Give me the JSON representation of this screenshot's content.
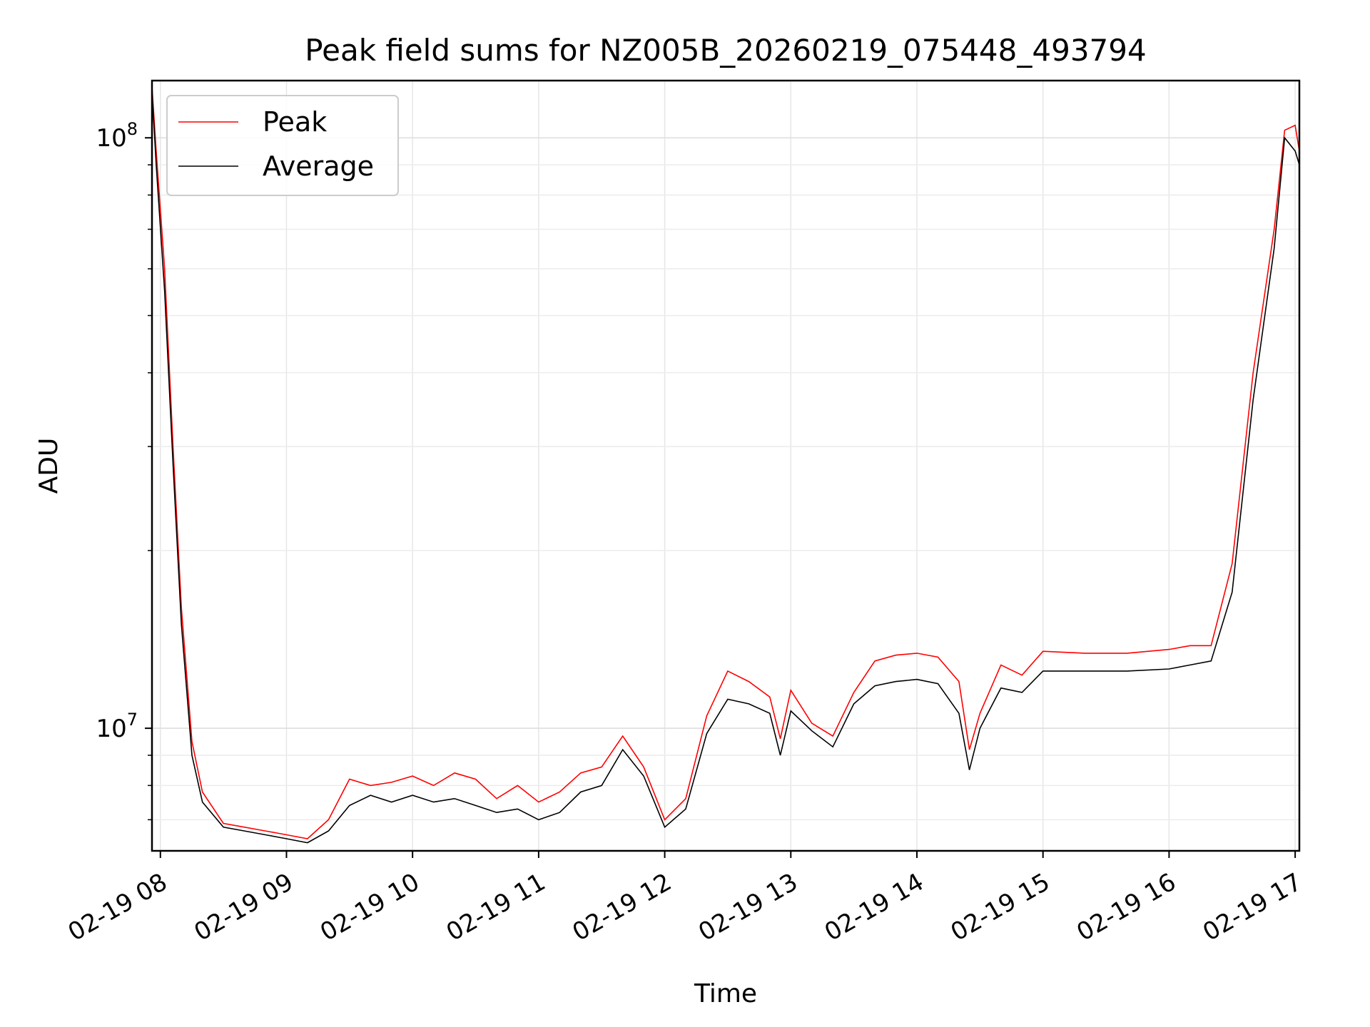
{
  "chart_data": {
    "type": "line",
    "title": "Peak field sums for NZ005B_20260219_075448_493794",
    "xlabel": "Time",
    "ylabel": "ADU",
    "y_scale": "log",
    "ylim": [
      6200000,
      125000000
    ],
    "xlim": [
      "2026-02-19 07:56",
      "2026-02-19 17:02"
    ],
    "grid": true,
    "legend": {
      "placement": "top-left",
      "entries": [
        "Peak",
        "Average"
      ]
    },
    "x_ticks": [
      {
        "time": "2026-02-19 08:00",
        "label": "02-19 08"
      },
      {
        "time": "2026-02-19 09:00",
        "label": "02-19 09"
      },
      {
        "time": "2026-02-19 10:00",
        "label": "02-19 10"
      },
      {
        "time": "2026-02-19 11:00",
        "label": "02-19 11"
      },
      {
        "time": "2026-02-19 12:00",
        "label": "02-19 12"
      },
      {
        "time": "2026-02-19 13:00",
        "label": "02-19 13"
      },
      {
        "time": "2026-02-19 14:00",
        "label": "02-19 14"
      },
      {
        "time": "2026-02-19 15:00",
        "label": "02-19 15"
      },
      {
        "time": "2026-02-19 16:00",
        "label": "02-19 16"
      },
      {
        "time": "2026-02-19 17:00",
        "label": "02-19 17"
      }
    ],
    "y_major_ticks": [
      {
        "value": 10000000,
        "base": "10",
        "exp": "7"
      },
      {
        "value": 100000000,
        "base": "10",
        "exp": "8"
      }
    ],
    "y_minor_ticks": [
      7000000,
      8000000,
      9000000,
      20000000,
      30000000,
      40000000,
      50000000,
      60000000,
      70000000,
      80000000,
      90000000
    ],
    "series": [
      {
        "name": "Peak",
        "color": "#ff0000",
        "x": [
          "2026-02-19 07:56",
          "2026-02-19 07:58",
          "2026-02-19 08:02",
          "2026-02-19 08:06",
          "2026-02-19 08:10",
          "2026-02-19 08:15",
          "2026-02-19 08:20",
          "2026-02-19 08:30",
          "2026-02-19 08:40",
          "2026-02-19 08:50",
          "2026-02-19 09:00",
          "2026-02-19 09:10",
          "2026-02-19 09:20",
          "2026-02-19 09:30",
          "2026-02-19 09:40",
          "2026-02-19 09:50",
          "2026-02-19 10:00",
          "2026-02-19 10:10",
          "2026-02-19 10:20",
          "2026-02-19 10:30",
          "2026-02-19 10:40",
          "2026-02-19 10:50",
          "2026-02-19 11:00",
          "2026-02-19 11:10",
          "2026-02-19 11:20",
          "2026-02-19 11:30",
          "2026-02-19 11:40",
          "2026-02-19 11:50",
          "2026-02-19 12:00",
          "2026-02-19 12:10",
          "2026-02-19 12:20",
          "2026-02-19 12:30",
          "2026-02-19 12:40",
          "2026-02-19 12:50",
          "2026-02-19 12:55",
          "2026-02-19 13:00",
          "2026-02-19 13:10",
          "2026-02-19 13:20",
          "2026-02-19 13:30",
          "2026-02-19 13:40",
          "2026-02-19 13:50",
          "2026-02-19 14:00",
          "2026-02-19 14:10",
          "2026-02-19 14:20",
          "2026-02-19 14:25",
          "2026-02-19 14:30",
          "2026-02-19 14:40",
          "2026-02-19 14:50",
          "2026-02-19 15:00",
          "2026-02-19 15:20",
          "2026-02-19 15:40",
          "2026-02-19 16:00",
          "2026-02-19 16:10",
          "2026-02-19 16:20",
          "2026-02-19 16:30",
          "2026-02-19 16:40",
          "2026-02-19 16:50",
          "2026-02-19 16:55",
          "2026-02-19 17:00",
          "2026-02-19 17:02"
        ],
        "y": [
          122000000,
          95000000,
          60000000,
          30000000,
          16000000,
          9500000,
          7800000,
          6900000,
          6800000,
          6700000,
          6600000,
          6500000,
          7000000,
          8200000,
          8000000,
          8100000,
          8300000,
          8000000,
          8400000,
          8200000,
          7600000,
          8000000,
          7500000,
          7800000,
          8400000,
          8600000,
          9700000,
          8600000,
          7000000,
          7600000,
          10500000,
          12500000,
          12000000,
          11300000,
          9600000,
          11600000,
          10200000,
          9700000,
          11500000,
          13000000,
          13300000,
          13400000,
          13200000,
          12000000,
          9200000,
          10600000,
          12800000,
          12300000,
          13500000,
          13400000,
          13400000,
          13600000,
          13800000,
          13800000,
          19000000,
          40000000,
          70000000,
          103000000,
          105000000,
          95000000
        ]
      },
      {
        "name": "Average",
        "color": "#000000",
        "x": [
          "2026-02-19 07:56",
          "2026-02-19 07:58",
          "2026-02-19 08:02",
          "2026-02-19 08:06",
          "2026-02-19 08:10",
          "2026-02-19 08:15",
          "2026-02-19 08:20",
          "2026-02-19 08:30",
          "2026-02-19 08:40",
          "2026-02-19 08:50",
          "2026-02-19 09:00",
          "2026-02-19 09:10",
          "2026-02-19 09:20",
          "2026-02-19 09:30",
          "2026-02-19 09:40",
          "2026-02-19 09:50",
          "2026-02-19 10:00",
          "2026-02-19 10:10",
          "2026-02-19 10:20",
          "2026-02-19 10:30",
          "2026-02-19 10:40",
          "2026-02-19 10:50",
          "2026-02-19 11:00",
          "2026-02-19 11:10",
          "2026-02-19 11:20",
          "2026-02-19 11:30",
          "2026-02-19 11:40",
          "2026-02-19 11:50",
          "2026-02-19 12:00",
          "2026-02-19 12:10",
          "2026-02-19 12:20",
          "2026-02-19 12:30",
          "2026-02-19 12:40",
          "2026-02-19 12:50",
          "2026-02-19 12:55",
          "2026-02-19 13:00",
          "2026-02-19 13:10",
          "2026-02-19 13:20",
          "2026-02-19 13:30",
          "2026-02-19 13:40",
          "2026-02-19 13:50",
          "2026-02-19 14:00",
          "2026-02-19 14:10",
          "2026-02-19 14:20",
          "2026-02-19 14:25",
          "2026-02-19 14:30",
          "2026-02-19 14:40",
          "2026-02-19 14:50",
          "2026-02-19 15:00",
          "2026-02-19 15:20",
          "2026-02-19 15:40",
          "2026-02-19 16:00",
          "2026-02-19 16:10",
          "2026-02-19 16:20",
          "2026-02-19 16:30",
          "2026-02-19 16:40",
          "2026-02-19 16:50",
          "2026-02-19 16:55",
          "2026-02-19 17:00",
          "2026-02-19 17:02"
        ],
        "y": [
          120000000,
          90000000,
          55000000,
          28000000,
          15000000,
          9000000,
          7500000,
          6800000,
          6700000,
          6600000,
          6500000,
          6400000,
          6700000,
          7400000,
          7700000,
          7500000,
          7700000,
          7500000,
          7600000,
          7400000,
          7200000,
          7300000,
          7000000,
          7200000,
          7800000,
          8000000,
          9200000,
          8300000,
          6800000,
          7300000,
          9800000,
          11200000,
          11000000,
          10600000,
          9000000,
          10700000,
          9900000,
          9300000,
          11000000,
          11800000,
          12000000,
          12100000,
          11900000,
          10600000,
          8500000,
          10000000,
          11700000,
          11500000,
          12500000,
          12500000,
          12500000,
          12600000,
          12800000,
          13000000,
          17000000,
          36000000,
          65000000,
          100000000,
          95000000,
          90000000
        ]
      }
    ]
  }
}
